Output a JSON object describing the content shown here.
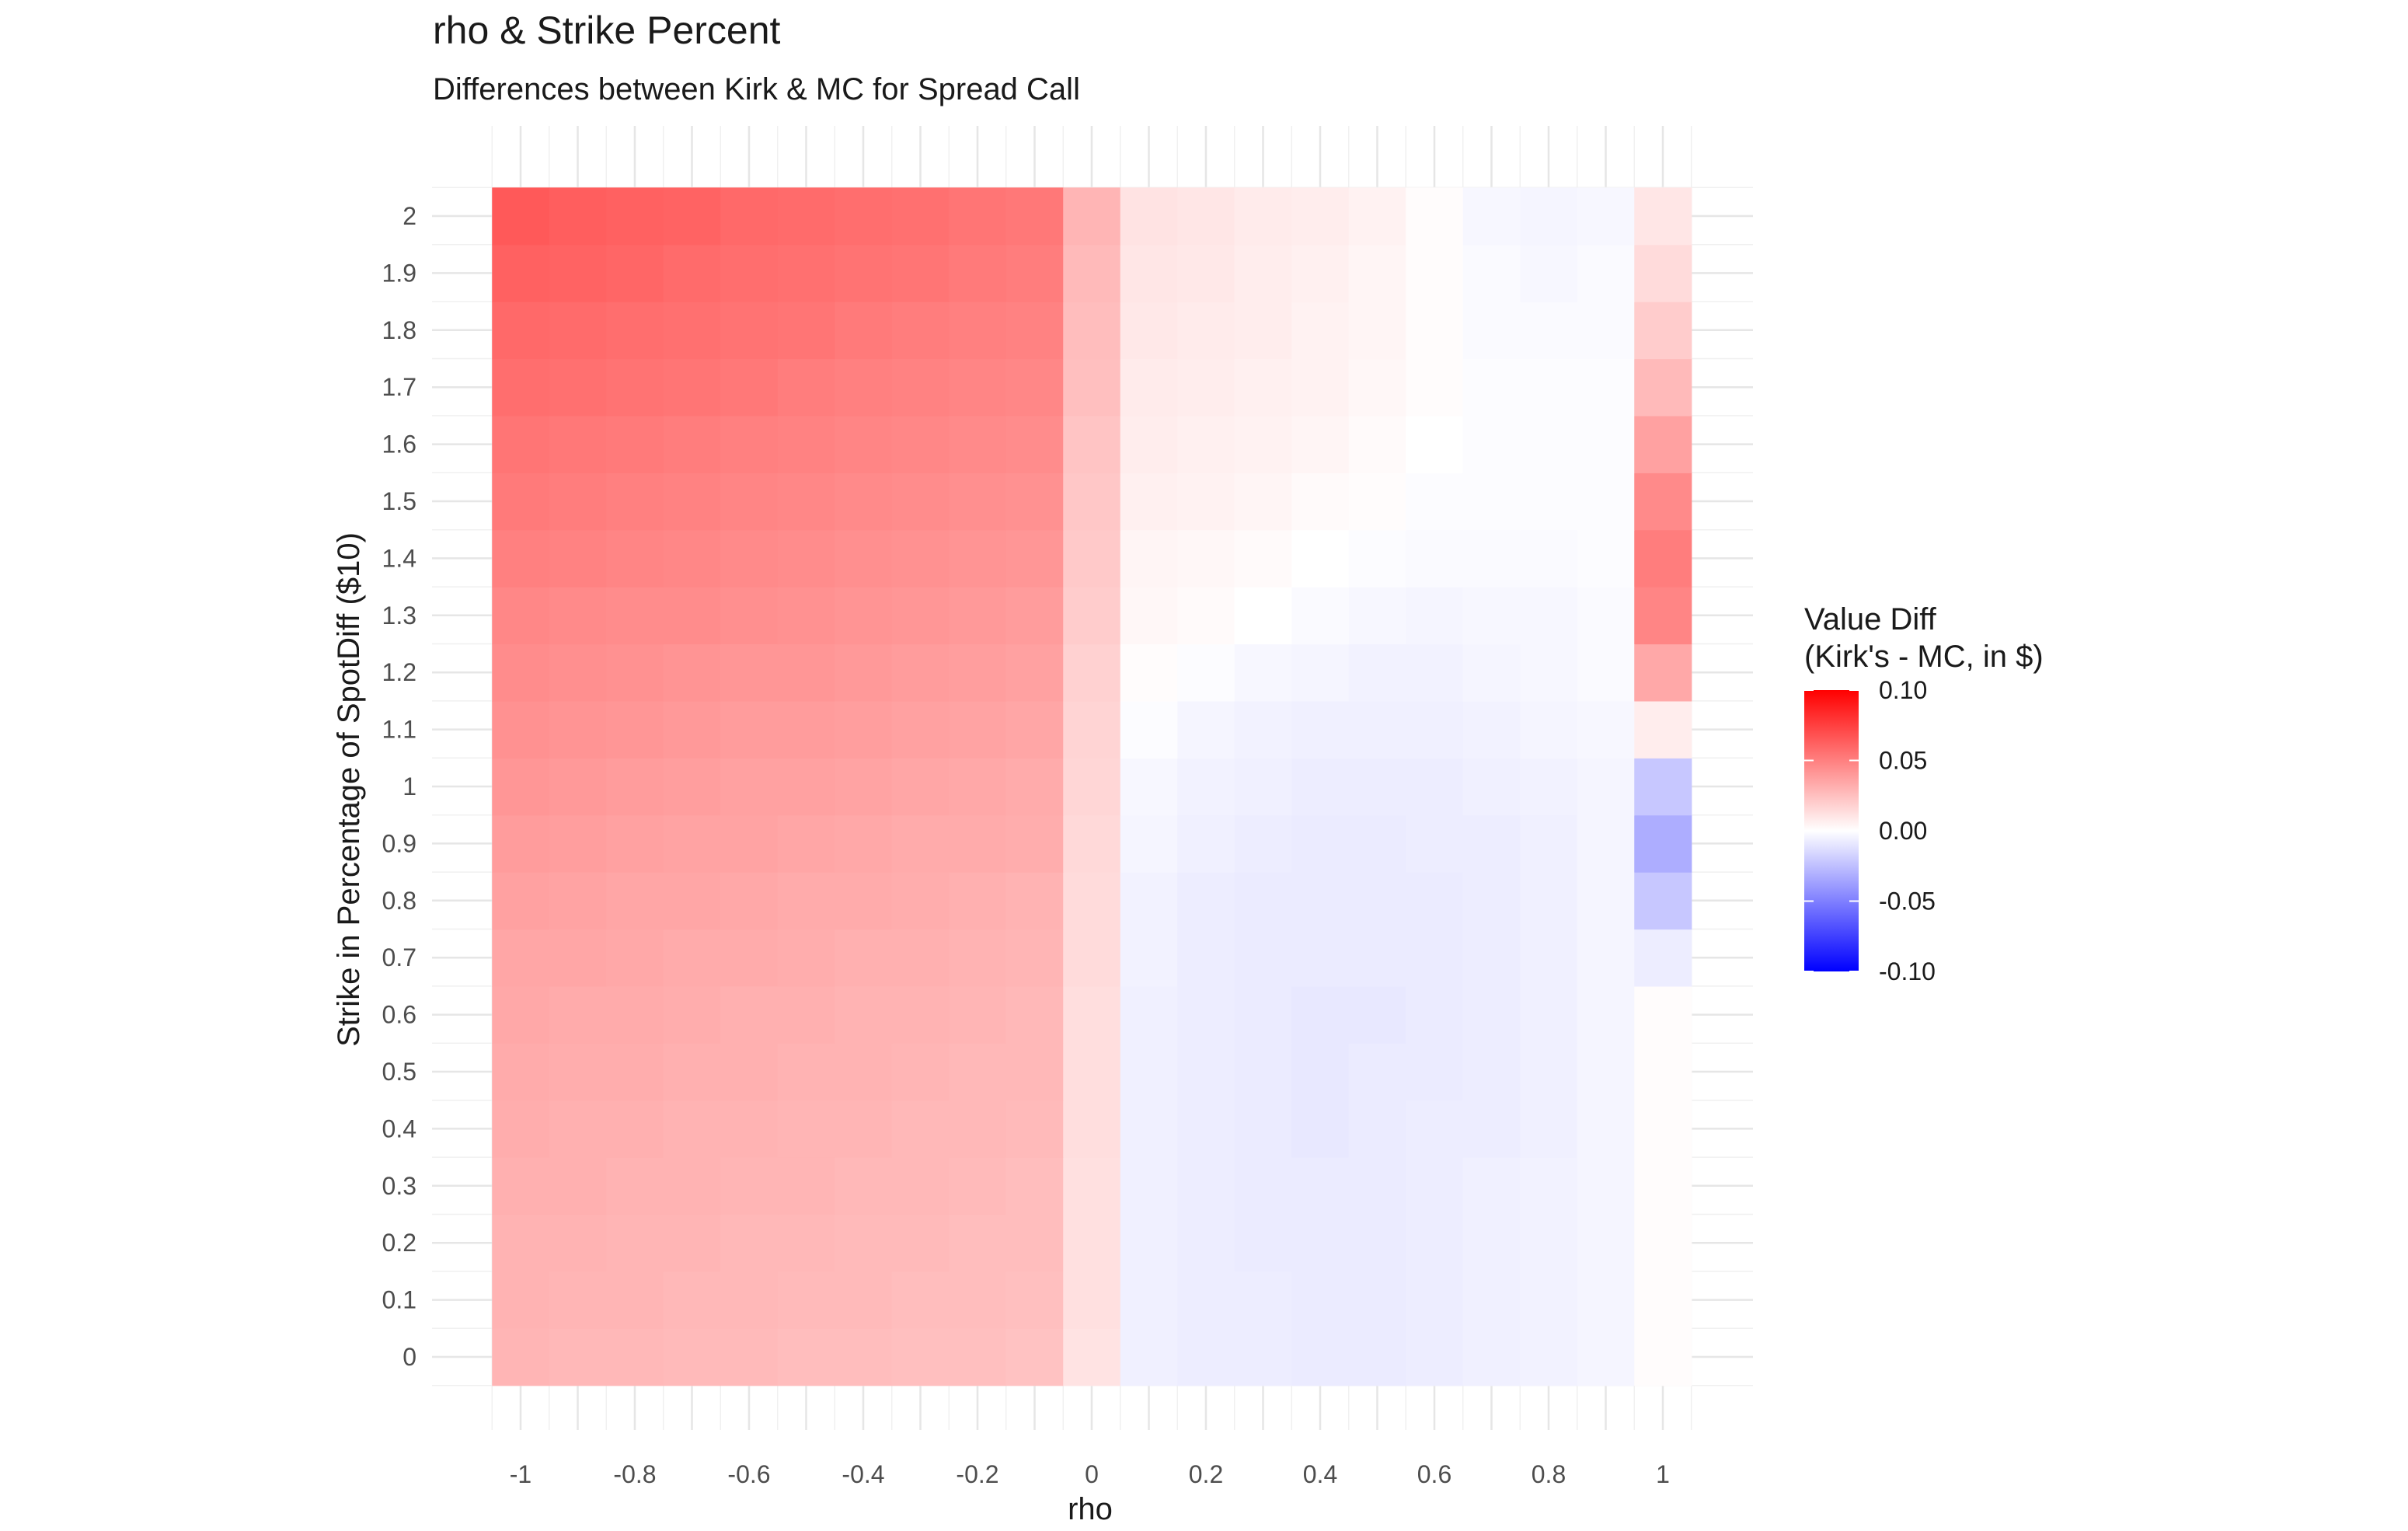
{
  "chart_data": {
    "type": "heatmap",
    "title": "rho & Strike Percent",
    "subtitle": "Differences between Kirk & MC for Spread Call",
    "xlabel": "rho",
    "ylabel": "Strike in Percentage of SpotDiff ($10)",
    "x": [
      -1,
      -0.9,
      -0.8,
      -0.7,
      -0.6,
      -0.5,
      -0.4,
      -0.3,
      -0.2,
      -0.1,
      0,
      0.1,
      0.2,
      0.3,
      0.4,
      0.5,
      0.6,
      0.7,
      0.8,
      0.9,
      1
    ],
    "y": [
      0,
      0.1,
      0.2,
      0.3,
      0.4,
      0.5,
      0.6,
      0.7,
      0.8,
      0.9,
      1,
      1.1,
      1.2,
      1.3,
      1.4,
      1.5,
      1.6,
      1.7,
      1.8,
      1.9,
      2
    ],
    "x_ticks": [
      "-1",
      "-0.8",
      "-0.6",
      "-0.4",
      "-0.2",
      "0",
      "0.2",
      "0.4",
      "0.6",
      "0.8",
      "1"
    ],
    "y_ticks": [
      "0",
      "0.1",
      "0.2",
      "0.3",
      "0.4",
      "0.5",
      "0.6",
      "0.7",
      "0.8",
      "0.9",
      "1",
      "1.1",
      "1.2",
      "1.3",
      "1.4",
      "1.5",
      "1.6",
      "1.7",
      "1.8",
      "1.9",
      "2"
    ],
    "values": [
      [
        0.029,
        0.028,
        0.028,
        0.027,
        0.027,
        0.026,
        0.026,
        0.025,
        0.025,
        0.024,
        0.011,
        -0.006,
        -0.007,
        -0.007,
        -0.008,
        -0.008,
        -0.007,
        -0.006,
        -0.005,
        -0.004,
        0.001
      ],
      [
        0.03,
        0.029,
        0.029,
        0.028,
        0.028,
        0.027,
        0.027,
        0.026,
        0.026,
        0.025,
        0.012,
        -0.006,
        -0.007,
        -0.007,
        -0.008,
        -0.008,
        -0.007,
        -0.006,
        -0.005,
        -0.004,
        0.001
      ],
      [
        0.03,
        0.03,
        0.029,
        0.029,
        0.028,
        0.028,
        0.027,
        0.027,
        0.026,
        0.026,
        0.012,
        -0.006,
        -0.007,
        -0.008,
        -0.008,
        -0.008,
        -0.007,
        -0.006,
        -0.005,
        -0.004,
        0.001
      ],
      [
        0.031,
        0.031,
        0.03,
        0.03,
        0.029,
        0.029,
        0.028,
        0.028,
        0.027,
        0.026,
        0.012,
        -0.006,
        -0.007,
        -0.008,
        -0.008,
        -0.008,
        -0.007,
        -0.006,
        -0.005,
        -0.004,
        0.001
      ],
      [
        0.032,
        0.031,
        0.031,
        0.03,
        0.03,
        0.029,
        0.029,
        0.028,
        0.028,
        0.027,
        0.013,
        -0.006,
        -0.007,
        -0.008,
        -0.009,
        -0.008,
        -0.007,
        -0.007,
        -0.006,
        -0.004,
        0.001
      ],
      [
        0.033,
        0.032,
        0.032,
        0.031,
        0.031,
        0.03,
        0.03,
        0.029,
        0.028,
        0.028,
        0.013,
        -0.006,
        -0.007,
        -0.008,
        -0.009,
        -0.008,
        -0.008,
        -0.007,
        -0.006,
        -0.004,
        0.001
      ],
      [
        0.034,
        0.033,
        0.033,
        0.032,
        0.031,
        0.031,
        0.03,
        0.03,
        0.029,
        0.028,
        0.013,
        -0.006,
        -0.007,
        -0.008,
        -0.009,
        -0.009,
        -0.008,
        -0.007,
        -0.006,
        -0.004,
        0.001
      ],
      [
        0.035,
        0.035,
        0.034,
        0.033,
        0.033,
        0.032,
        0.031,
        0.031,
        0.03,
        0.029,
        0.014,
        -0.005,
        -0.007,
        -0.008,
        -0.008,
        -0.008,
        -0.008,
        -0.007,
        -0.006,
        -0.004,
        -0.007
      ],
      [
        0.037,
        0.036,
        0.035,
        0.035,
        0.034,
        0.033,
        0.033,
        0.032,
        0.031,
        0.03,
        0.014,
        -0.005,
        -0.007,
        -0.008,
        -0.008,
        -0.008,
        -0.008,
        -0.007,
        -0.006,
        -0.004,
        -0.022
      ],
      [
        0.039,
        0.038,
        0.037,
        0.036,
        0.036,
        0.035,
        0.034,
        0.033,
        0.033,
        0.032,
        0.015,
        -0.004,
        -0.006,
        -0.007,
        -0.008,
        -0.008,
        -0.007,
        -0.007,
        -0.006,
        -0.004,
        -0.032
      ],
      [
        0.041,
        0.04,
        0.039,
        0.038,
        0.037,
        0.037,
        0.036,
        0.035,
        0.034,
        0.033,
        0.016,
        -0.003,
        -0.005,
        -0.006,
        -0.007,
        -0.007,
        -0.007,
        -0.006,
        -0.005,
        -0.004,
        -0.022
      ],
      [
        0.043,
        0.042,
        0.041,
        0.04,
        0.039,
        0.039,
        0.038,
        0.037,
        0.036,
        0.035,
        0.017,
        -0.001,
        -0.004,
        -0.005,
        -0.006,
        -0.006,
        -0.006,
        -0.005,
        -0.004,
        -0.003,
        0.007
      ],
      [
        0.045,
        0.044,
        0.043,
        0.042,
        0.041,
        0.041,
        0.04,
        0.039,
        0.038,
        0.037,
        0.018,
        0.001,
        -0.001,
        -0.003,
        -0.004,
        -0.005,
        -0.005,
        -0.004,
        -0.003,
        -0.002,
        0.034
      ],
      [
        0.047,
        0.046,
        0.045,
        0.045,
        0.044,
        0.043,
        0.042,
        0.041,
        0.04,
        0.039,
        0.02,
        0.003,
        0.002,
        0.0,
        -0.002,
        -0.003,
        -0.004,
        -0.003,
        -0.003,
        -0.002,
        0.048
      ],
      [
        0.05,
        0.049,
        0.048,
        0.047,
        0.046,
        0.045,
        0.044,
        0.043,
        0.042,
        0.041,
        0.021,
        0.004,
        0.003,
        0.002,
        0.0,
        -0.001,
        -0.002,
        -0.002,
        -0.002,
        -0.001,
        0.051
      ],
      [
        0.052,
        0.051,
        0.05,
        0.049,
        0.048,
        0.047,
        0.046,
        0.045,
        0.044,
        0.043,
        0.022,
        0.006,
        0.005,
        0.004,
        0.002,
        0.001,
        -0.001,
        -0.001,
        -0.001,
        -0.001,
        0.046
      ],
      [
        0.054,
        0.053,
        0.052,
        0.051,
        0.05,
        0.049,
        0.048,
        0.047,
        0.046,
        0.045,
        0.023,
        0.007,
        0.006,
        0.005,
        0.004,
        0.002,
        0.0,
        -0.001,
        -0.001,
        -0.001,
        0.037
      ],
      [
        0.057,
        0.056,
        0.055,
        0.054,
        0.053,
        0.051,
        0.05,
        0.049,
        0.048,
        0.047,
        0.025,
        0.008,
        0.007,
        0.006,
        0.005,
        0.003,
        0.001,
        -0.001,
        -0.001,
        -0.001,
        0.027
      ],
      [
        0.059,
        0.058,
        0.057,
        0.056,
        0.055,
        0.054,
        0.052,
        0.051,
        0.05,
        0.049,
        0.026,
        0.009,
        0.008,
        0.007,
        0.005,
        0.004,
        0.001,
        -0.002,
        -0.002,
        -0.002,
        0.02
      ],
      [
        0.062,
        0.061,
        0.06,
        0.058,
        0.057,
        0.056,
        0.055,
        0.054,
        0.052,
        0.051,
        0.027,
        0.01,
        0.009,
        0.007,
        0.006,
        0.004,
        0.001,
        -0.002,
        -0.003,
        -0.002,
        0.014
      ],
      [
        0.065,
        0.063,
        0.062,
        0.061,
        0.059,
        0.058,
        0.057,
        0.056,
        0.054,
        0.053,
        0.029,
        0.011,
        0.01,
        0.008,
        0.007,
        0.005,
        0.001,
        -0.003,
        -0.004,
        -0.003,
        0.01
      ]
    ],
    "legend": {
      "title_line1": "Value Diff",
      "title_line2": "(Kirk's - MC, in $)",
      "ticks": [
        "0.10",
        "0.05",
        "0.00",
        "-0.05",
        "-0.10"
      ],
      "limits": [
        -0.1,
        0.1
      ],
      "low_color": "#0000ff",
      "mid_color": "#ffffff",
      "high_color": "#ff0000",
      "placement": "right"
    },
    "grid": true
  }
}
